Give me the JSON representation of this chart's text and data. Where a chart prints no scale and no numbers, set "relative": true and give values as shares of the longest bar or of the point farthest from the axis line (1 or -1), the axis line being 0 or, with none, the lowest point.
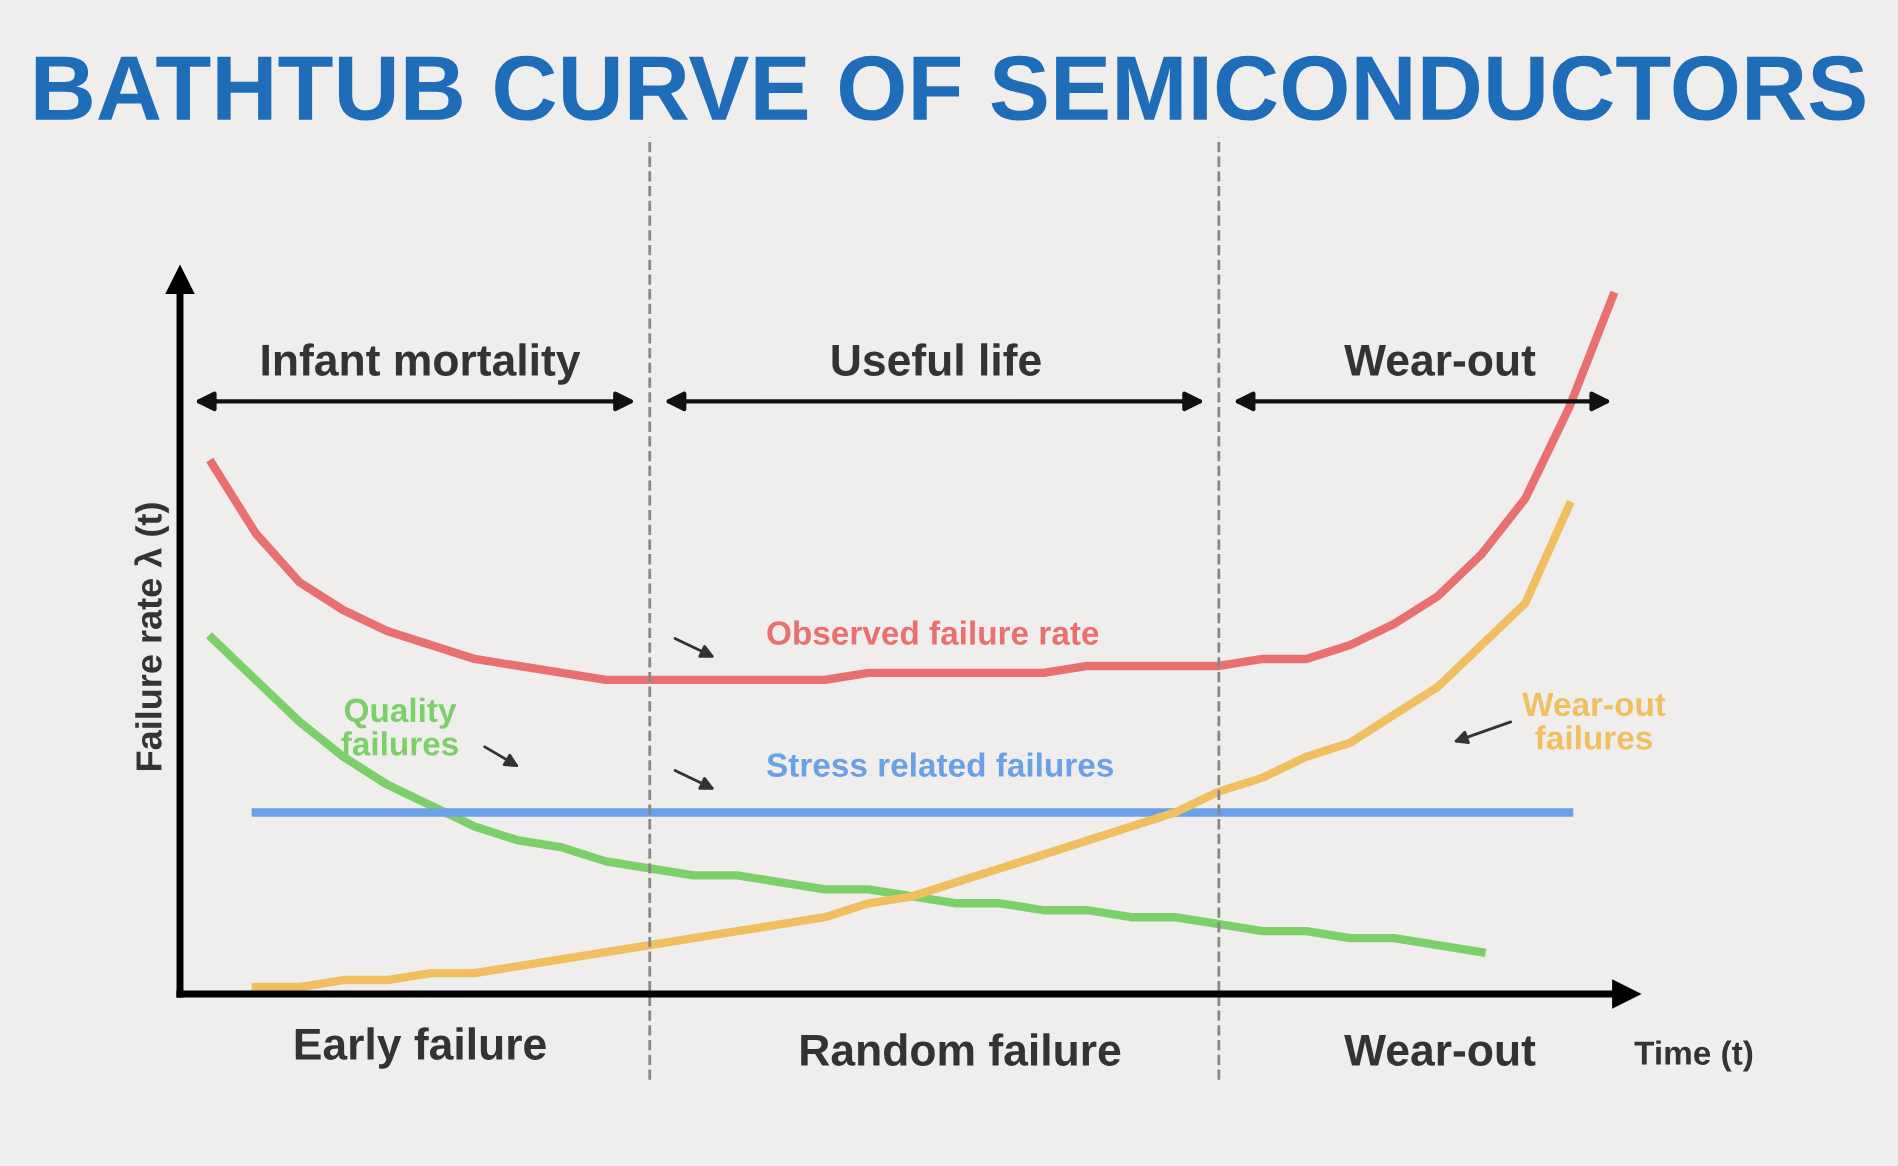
{
  "chart_data": {
    "type": "line",
    "title": "BATHTUB CURVE OF SEMICONDUCTORS",
    "xlabel": "Time (t)",
    "ylabel": "Failure rate λ (t)",
    "relative": true,
    "legend": false,
    "marker": "none",
    "line_style": "solid",
    "categories": [
      null,
      null,
      null,
      null,
      null,
      null,
      null,
      null,
      null,
      null,
      null,
      null,
      null,
      null,
      null,
      null,
      null,
      null,
      null,
      null,
      null,
      null,
      null,
      null,
      null,
      null,
      null,
      null,
      null,
      null,
      null,
      null,
      null
    ],
    "series": [
      {
        "name": "Observed failure rate",
        "color": "#e8706f",
        "values": [
          0.76,
          0.66,
          0.59,
          0.55,
          0.52,
          0.5,
          0.48,
          0.47,
          0.46,
          0.45,
          0.45,
          0.45,
          0.45,
          0.45,
          0.45,
          0.46,
          0.46,
          0.46,
          0.46,
          0.46,
          0.47,
          0.47,
          0.47,
          0.47,
          0.48,
          0.48,
          0.5,
          0.53,
          0.57,
          0.63,
          0.71,
          0.84,
          1
        ]
      },
      {
        "name": "Quality failures",
        "color": "#7ccf6a",
        "values": [
          0.51,
          0.45,
          0.39,
          0.34,
          0.3,
          0.27,
          0.24,
          0.22,
          0.21,
          0.19,
          0.18,
          0.17,
          0.17,
          0.16,
          0.15,
          0.15,
          0.14,
          0.13,
          0.13,
          0.12,
          0.12,
          0.11,
          0.11,
          0.1,
          0.09,
          0.09,
          0.08,
          0.08,
          0.07,
          0.06,
          null,
          null,
          null
        ]
      },
      {
        "name": "Stress related failures",
        "color": "#6aa0e8",
        "values": [
          null,
          0.26,
          0.26,
          0.26,
          0.26,
          0.26,
          0.26,
          0.26,
          0.26,
          0.26,
          0.26,
          0.26,
          0.26,
          0.26,
          0.26,
          0.26,
          0.26,
          0.26,
          0.26,
          0.26,
          0.26,
          0.26,
          0.26,
          0.26,
          0.26,
          0.26,
          0.26,
          0.26,
          0.26,
          0.26,
          0.26,
          0.26,
          null
        ]
      },
      {
        "name": "Wear-out failures",
        "color": "#f0c060",
        "values": [
          null,
          0.01,
          0.01,
          0.02,
          0.02,
          0.03,
          0.03,
          0.04,
          0.05,
          0.06,
          0.07,
          0.08,
          0.09,
          0.1,
          0.11,
          0.13,
          0.14,
          0.16,
          0.18,
          0.2,
          0.22,
          0.24,
          0.26,
          0.29,
          0.31,
          0.34,
          0.36,
          0.4,
          0.44,
          0.5,
          0.56,
          0.7,
          null
        ]
      }
    ],
    "annotations": [
      "Infant mortality",
      "Useful life",
      "Wear-out",
      "Early failure",
      "Random failure",
      "Wear-out"
    ]
  }
}
